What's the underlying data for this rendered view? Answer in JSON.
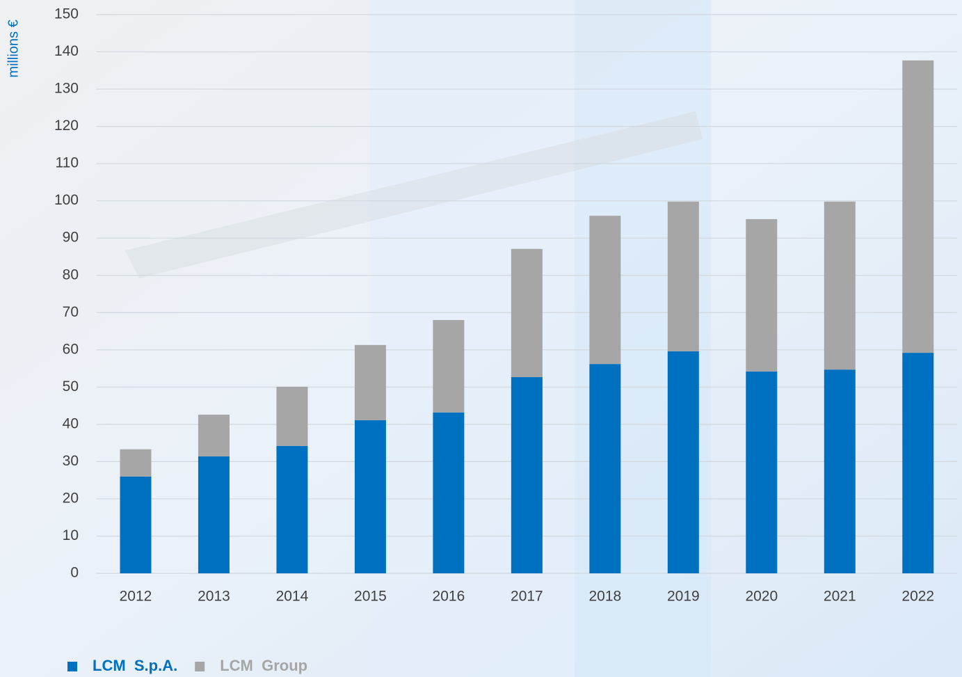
{
  "chart_data": {
    "type": "stacked-bar",
    "y_label": "millions €",
    "categories": [
      "2012",
      "2013",
      "2014",
      "2015",
      "2016",
      "2017",
      "2018",
      "2019",
      "2020",
      "2021",
      "2022"
    ],
    "series": [
      {
        "name": "LCM  S.p.A.",
        "color": "#0070c0",
        "values": [
          26.0,
          31.4,
          34.2,
          41.1,
          43.2,
          52.7,
          56.2,
          59.6,
          54.2,
          54.7,
          59.2
        ]
      },
      {
        "name": "LCM  Group",
        "color": "#a6a6a6",
        "values": [
          7.3,
          11.2,
          15.9,
          20.2,
          24.8,
          34.4,
          39.8,
          40.2,
          40.9,
          45.1,
          78.5
        ]
      }
    ],
    "ylim": [
      0,
      150
    ],
    "yticks": [
      0,
      10,
      20,
      30,
      40,
      50,
      60,
      70,
      80,
      90,
      100,
      110,
      120,
      130,
      140,
      150
    ],
    "grid": true,
    "legend": "bottom-left"
  }
}
